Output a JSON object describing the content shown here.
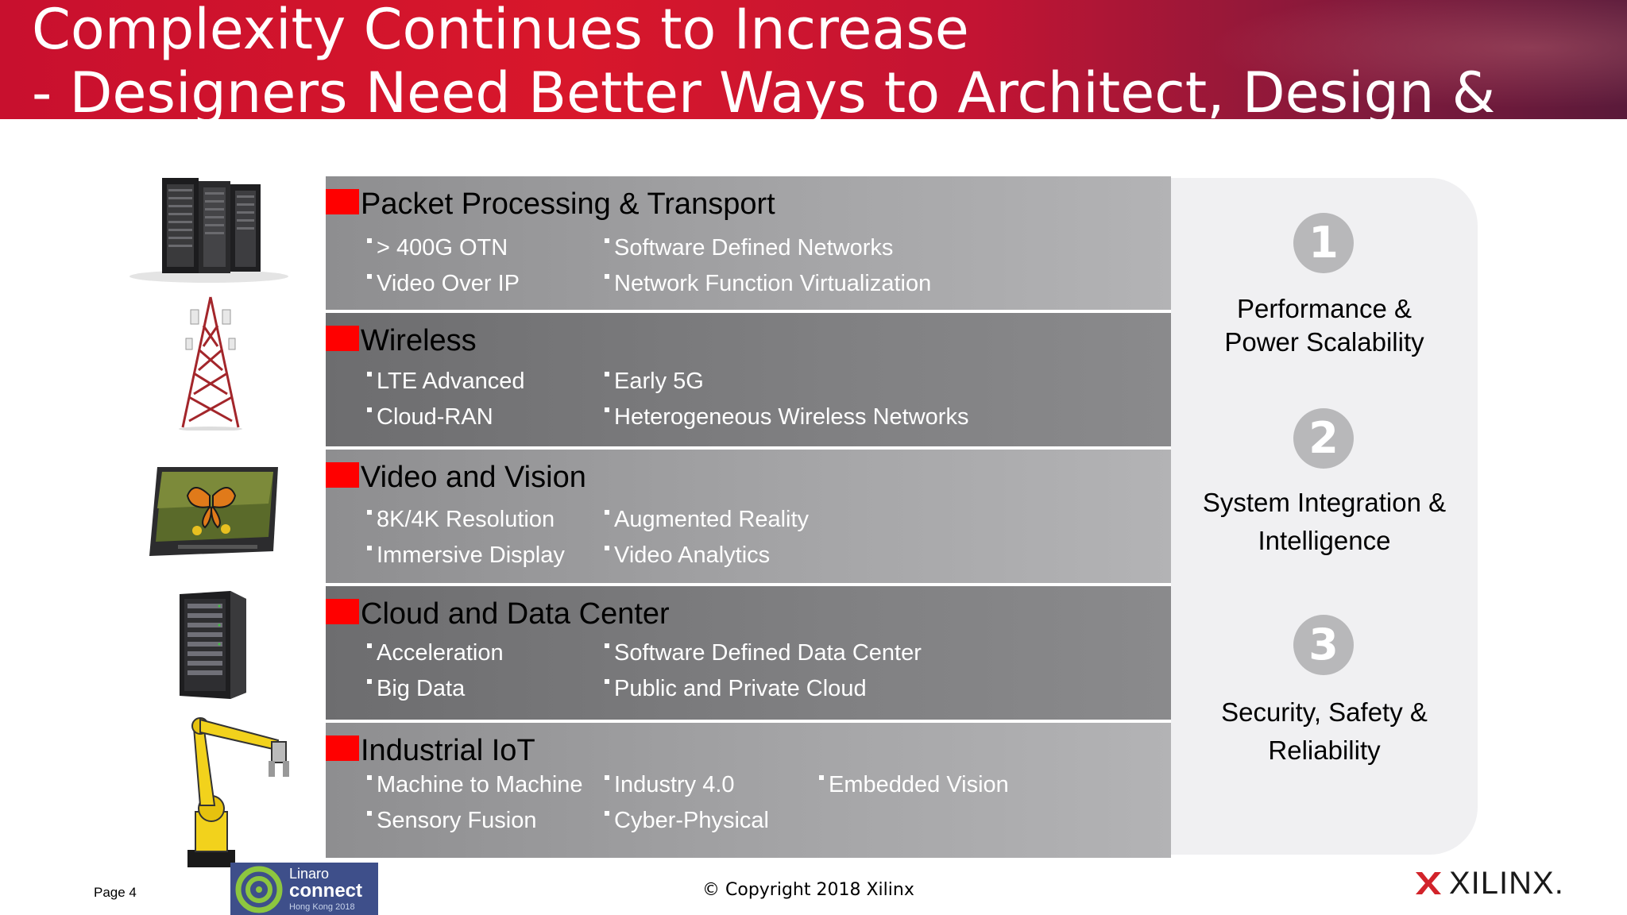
{
  "header": {
    "title_line1": "Complexity Continues to Increase",
    "title_line2": "-  Designers Need Better Ways to Architect, Design &"
  },
  "rows": [
    {
      "title": "Packet Processing & Transport",
      "image_icon": "server-racks-icon",
      "items": [
        "> 400G OTN",
        "Software Defined Networks",
        "Video Over IP",
        "Network Function Virtualization"
      ]
    },
    {
      "title": "Wireless",
      "image_icon": "cell-tower-icon",
      "items": [
        "LTE Advanced",
        "Early 5G",
        "Cloud-RAN",
        "Heterogeneous Wireless Networks"
      ]
    },
    {
      "title": "Video and Vision",
      "image_icon": "monitor-butterfly-icon",
      "items": [
        "8K/4K Resolution",
        "Augmented Reality",
        "Immersive Display",
        "Video Analytics"
      ]
    },
    {
      "title": "Cloud and Data Center",
      "image_icon": "server-cabinet-icon",
      "items": [
        "Acceleration",
        "Software Defined Data Center",
        "Big Data",
        "Public and Private Cloud"
      ]
    },
    {
      "title": "Industrial IoT",
      "image_icon": "robot-arm-icon",
      "items": [
        "Machine to Machine",
        "Industry 4.0",
        "Embedded Vision",
        "Sensory Fusion",
        "Cyber-Physical"
      ]
    }
  ],
  "panel": [
    {
      "number": "1",
      "text_line1": "Performance &",
      "text_line2": "Power Scalability"
    },
    {
      "number": "2",
      "text_line1": "System Integration &",
      "text_line2": "Intelligence"
    },
    {
      "number": "3",
      "text_line1": "Security, Safety &",
      "text_line2": "Reliability"
    }
  ],
  "footer": {
    "page": "Page 4",
    "copyright": "© Copyright 2018 Xilinx",
    "linaro_line1": "Linaro",
    "linaro_line2": "connect",
    "linaro_line3": "Hong Kong 2018",
    "brand": "XILINX."
  },
  "colors": {
    "header_red": "#c8102e",
    "marker_red": "#ff0000",
    "row_light": "#a6a6a8",
    "row_dark": "#808082",
    "panel_bg": "#f0f0f2",
    "badge_gray": "#b8b8ba",
    "linaro_blue": "#3e4f8a"
  }
}
